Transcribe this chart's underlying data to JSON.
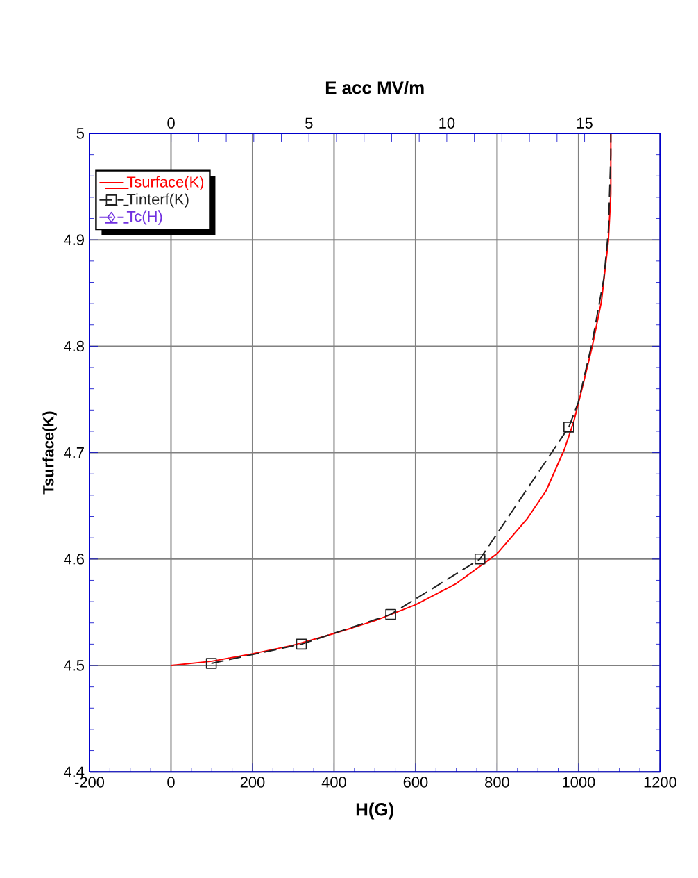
{
  "chart_data": {
    "type": "line",
    "xlabel": "H(G)",
    "ylabel": "Tsurface(K)",
    "x2label": "E acc MV/m",
    "xlim": [
      -200,
      1200
    ],
    "xticks": [
      -200,
      0,
      200,
      400,
      600,
      800,
      1000,
      1200
    ],
    "ylim": [
      4.4,
      5
    ],
    "yticks": [
      4.4,
      4.5,
      4.6,
      4.7,
      4.8,
      4.9,
      5
    ],
    "x2lim": [
      -2.96,
      17.74
    ],
    "x2ticks": [
      0,
      5,
      10,
      15
    ],
    "grid": true,
    "legend": "top left",
    "series": [
      {
        "name": "Tsurface(K)",
        "color": "#ff0000",
        "marker": "none",
        "line_style": "solid",
        "x": [
          0,
          100,
          200,
          300,
          400,
          500,
          600,
          700,
          800,
          874,
          920,
          965,
          988,
          1011,
          1033,
          1056,
          1073,
          1079,
          1079
        ],
        "values": [
          4.5,
          4.504,
          4.511,
          4.519,
          4.53,
          4.542,
          4.557,
          4.577,
          4.605,
          4.638,
          4.664,
          4.703,
          4.729,
          4.764,
          4.799,
          4.842,
          4.899,
          4.943,
          5.0
        ]
      },
      {
        "name": "Tinterf(K)",
        "color": "#202020",
        "marker": "square",
        "line_style": "dashed",
        "x": [
          99,
          320,
          539,
          758,
          976
        ],
        "values": [
          4.502,
          4.52,
          4.548,
          4.6,
          4.724
        ]
      },
      {
        "color": "#202020",
        "marker": "none",
        "line_style": "dashed",
        "x": [
          976,
          999,
          1033,
          1062,
          1073,
          1079,
          1079
        ],
        "values": [
          4.724,
          4.747,
          4.803,
          4.864,
          4.908,
          4.98,
          5.0
        ]
      },
      {
        "name": "Tc(H)",
        "color": "#7030e0",
        "marker": "diamond",
        "line_style": "dashed"
      }
    ]
  }
}
